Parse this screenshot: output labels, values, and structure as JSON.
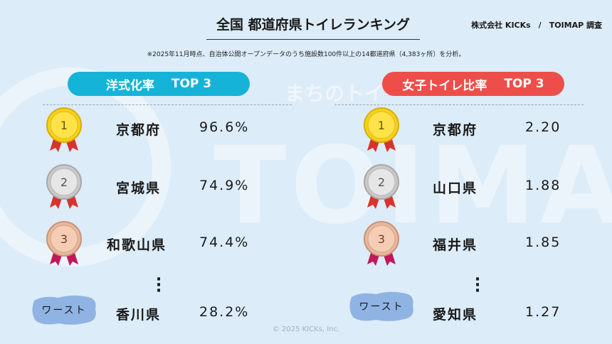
{
  "title": "全国 都道府県トイレランキング",
  "credit": "株式会社 KICKs　/　TOIMAP 調査",
  "note": "※2025年11月時点、自治体公開オープンデータのうち施設数100件以上の14都道府県（4,383ヶ所）を分析。",
  "watermark": {
    "big": "TOIMAP",
    "sub": "まちのトイ"
  },
  "colors": {
    "left_accent": "#16b3d8",
    "right_accent": "#ee4e49",
    "worst_blob": "#8fb3e3"
  },
  "left": {
    "heading_label": "洋式化率",
    "heading_top": "TOP 3",
    "ranks": [
      {
        "medal": "1",
        "name": "京都府",
        "value": "96.6%"
      },
      {
        "medal": "2",
        "name": "宮城県",
        "value": "74.9%"
      },
      {
        "medal": "3",
        "name": "和歌山県",
        "value": "74.4%"
      }
    ],
    "worst": {
      "badge": "ワースト",
      "name": "香川県",
      "value": "28.2%"
    }
  },
  "right": {
    "heading_label": "女子トイレ比率",
    "heading_top": "TOP 3",
    "ranks": [
      {
        "medal": "1",
        "name": "京都府",
        "value": "2.20"
      },
      {
        "medal": "2",
        "name": "山口県",
        "value": "1.88"
      },
      {
        "medal": "3",
        "name": "福井県",
        "value": "1.85"
      }
    ],
    "worst": {
      "badge": "ワースト",
      "name": "愛知県",
      "value": "1.27"
    }
  },
  "copyright": "© 2025 KICKs, Inc."
}
